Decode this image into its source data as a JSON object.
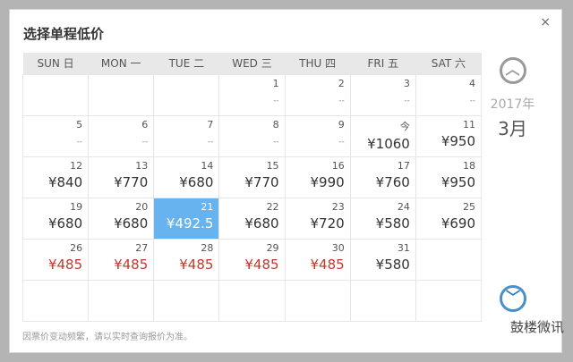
{
  "dialog": {
    "title": "选择单程低价",
    "close": "×"
  },
  "weekdays": [
    "SUN 日",
    "MON 一",
    "TUE 二",
    "WED 三",
    "THU 四",
    "FRI 五",
    "SAT 六"
  ],
  "weeks": [
    [
      {},
      {},
      {},
      {
        "day": "1",
        "price": "--"
      },
      {
        "day": "2",
        "price": "--"
      },
      {
        "day": "3",
        "price": "--"
      },
      {
        "day": "4",
        "price": "--"
      }
    ],
    [
      {
        "day": "5",
        "price": "--"
      },
      {
        "day": "6",
        "price": "--"
      },
      {
        "day": "7",
        "price": "--"
      },
      {
        "day": "8",
        "price": "--"
      },
      {
        "day": "9",
        "price": "--"
      },
      {
        "day": "今",
        "price": "¥1060"
      },
      {
        "day": "11",
        "price": "¥950"
      }
    ],
    [
      {
        "day": "12",
        "price": "¥840"
      },
      {
        "day": "13",
        "price": "¥770"
      },
      {
        "day": "14",
        "price": "¥680"
      },
      {
        "day": "15",
        "price": "¥770"
      },
      {
        "day": "16",
        "price": "¥990"
      },
      {
        "day": "17",
        "price": "¥760"
      },
      {
        "day": "18",
        "price": "¥950"
      }
    ],
    [
      {
        "day": "19",
        "price": "¥680"
      },
      {
        "day": "20",
        "price": "¥680"
      },
      {
        "day": "21",
        "price": "¥492.5",
        "selected": true
      },
      {
        "day": "22",
        "price": "¥680"
      },
      {
        "day": "23",
        "price": "¥720"
      },
      {
        "day": "24",
        "price": "¥580"
      },
      {
        "day": "25",
        "price": "¥690"
      }
    ],
    [
      {
        "day": "26",
        "price": "¥485",
        "low": true
      },
      {
        "day": "27",
        "price": "¥485",
        "low": true
      },
      {
        "day": "28",
        "price": "¥485",
        "low": true
      },
      {
        "day": "29",
        "price": "¥485",
        "low": true
      },
      {
        "day": "30",
        "price": "¥485",
        "low": true
      },
      {
        "day": "31",
        "price": "¥580"
      },
      {}
    ],
    [
      {},
      {},
      {},
      {},
      {},
      {},
      {}
    ]
  ],
  "nav": {
    "year": "2017年",
    "month": "3月",
    "prev_icon": "chevron-up-circle-icon",
    "next_icon": "chevron-down-circle-icon"
  },
  "note": "因票价变动频繁，请以实时查询报价为准。",
  "watermark": "鼓楼微讯",
  "colors": {
    "selected": "#66b3ef",
    "low_price": "#c0392b"
  }
}
